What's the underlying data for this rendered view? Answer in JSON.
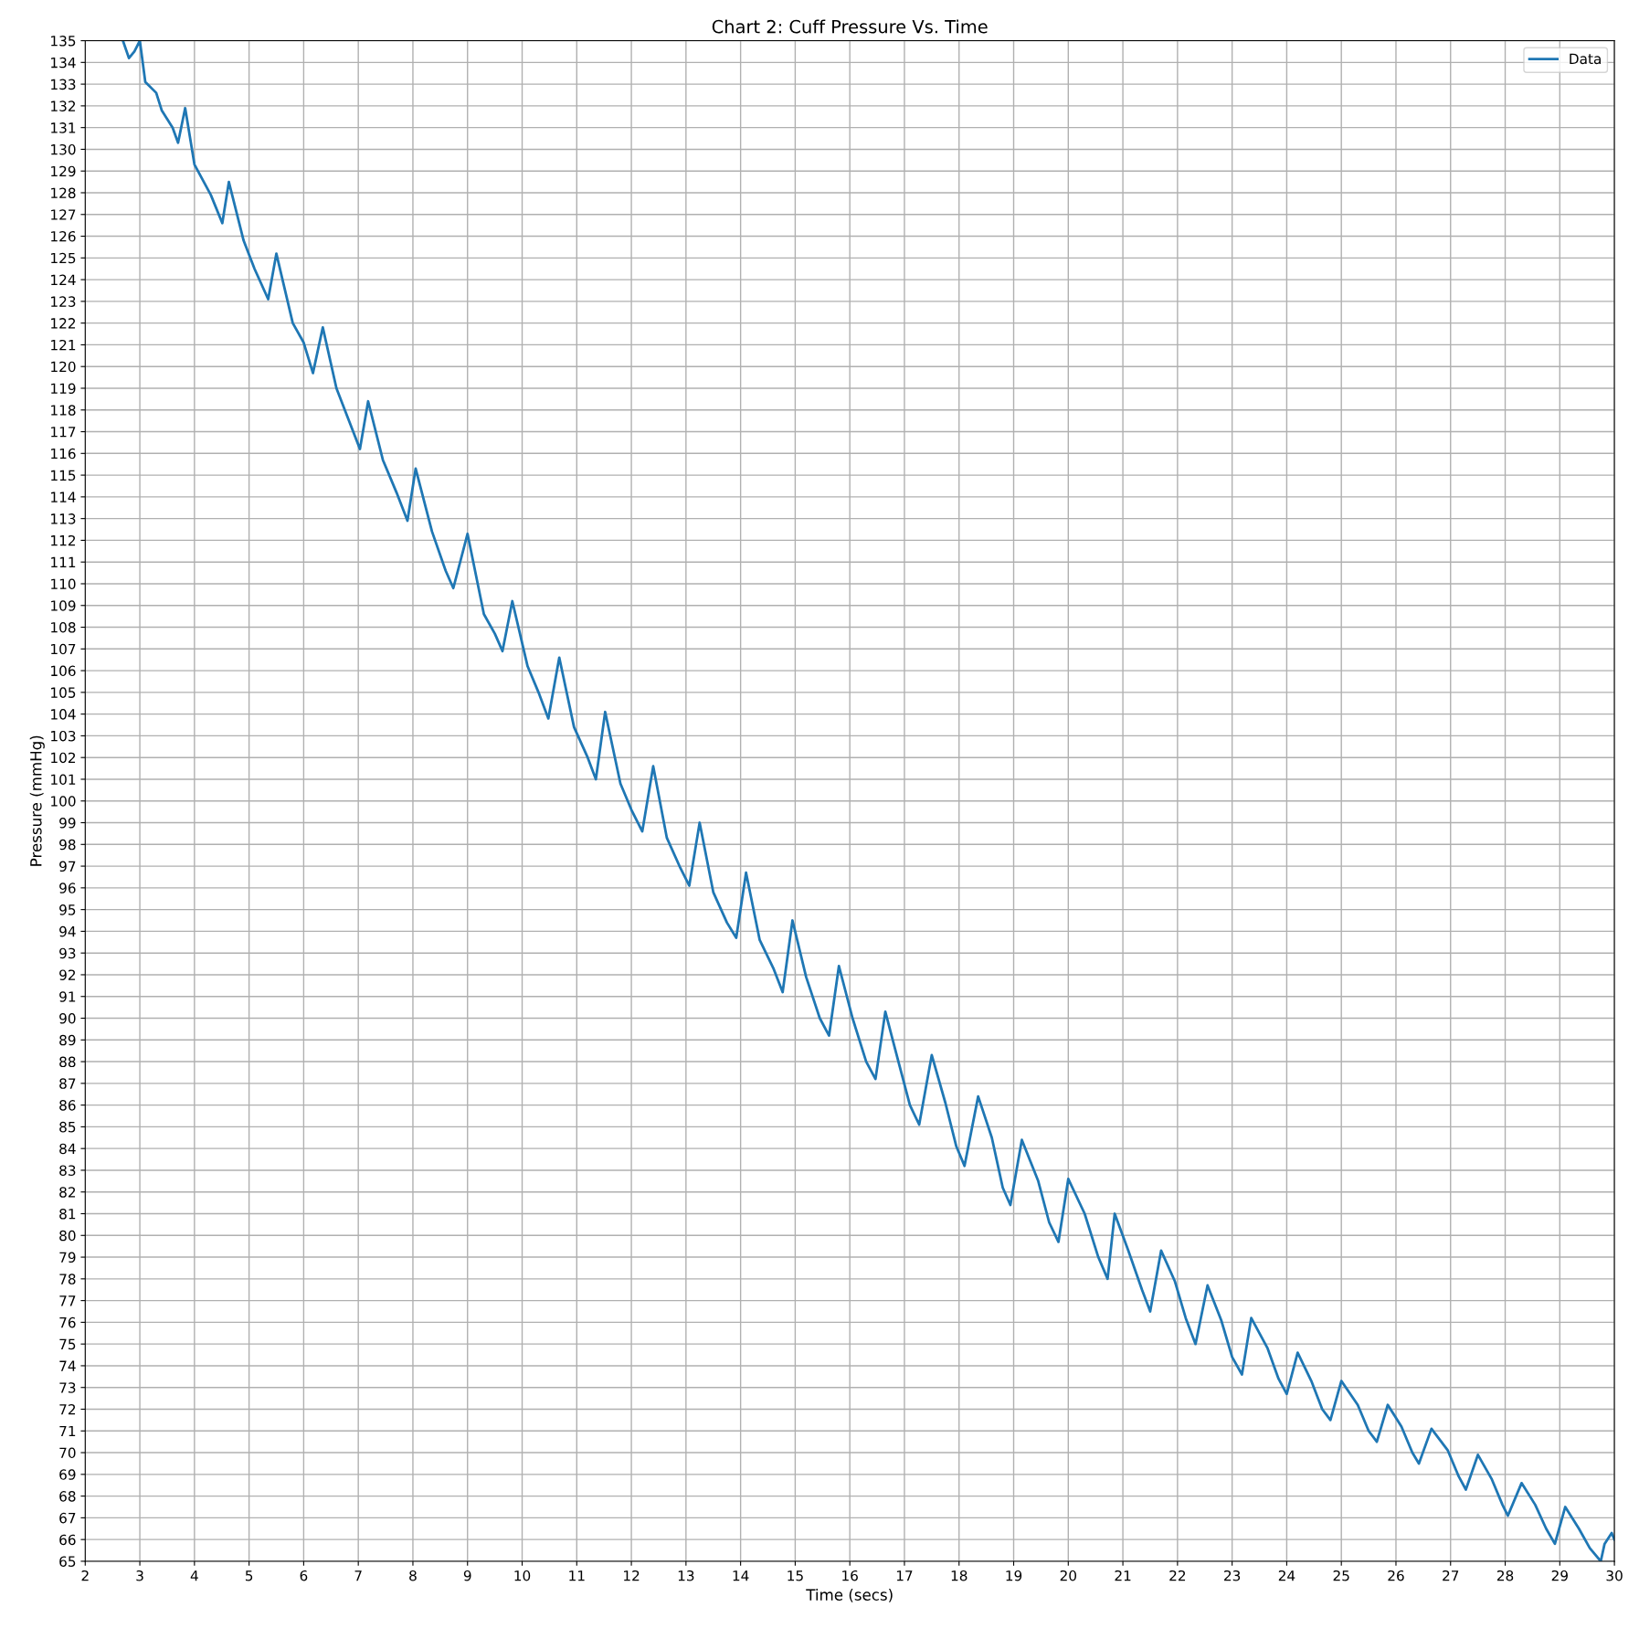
{
  "chart_data": {
    "type": "line",
    "title": "Chart 2: Cuff Pressure Vs. Time",
    "xlabel": "Time (secs)",
    "ylabel": "Pressure (mmHg)",
    "xlim": [
      2,
      30
    ],
    "xticks": [
      2,
      3,
      4,
      5,
      6,
      7,
      8,
      9,
      10,
      11,
      12,
      13,
      14,
      15,
      16,
      17,
      18,
      19,
      20,
      21,
      22,
      23,
      24,
      25,
      26,
      27,
      28,
      29,
      30
    ],
    "ylim": [
      65,
      135
    ],
    "yticks": [
      65,
      66,
      67,
      68,
      69,
      70,
      71,
      72,
      73,
      74,
      75,
      76,
      77,
      78,
      79,
      80,
      81,
      82,
      83,
      84,
      85,
      86,
      87,
      88,
      89,
      90,
      91,
      92,
      93,
      94,
      95,
      96,
      97,
      98,
      99,
      100,
      101,
      102,
      103,
      104,
      105,
      106,
      107,
      108,
      109,
      110,
      111,
      112,
      113,
      114,
      115,
      116,
      117,
      118,
      119,
      120,
      121,
      122,
      123,
      124,
      125,
      126,
      127,
      128,
      129,
      130,
      131,
      132,
      133,
      134,
      135
    ],
    "grid": true,
    "legend": "top right",
    "series": [
      {
        "name": "Data",
        "color": "#1f77b4",
        "x": [
          2.69,
          2.8,
          2.9,
          3.0,
          3.1,
          3.3,
          3.4,
          3.6,
          3.7,
          3.83,
          4.0,
          4.3,
          4.51,
          4.63,
          4.9,
          5.1,
          5.35,
          5.5,
          5.8,
          6.0,
          6.17,
          6.35,
          6.6,
          6.8,
          7.03,
          7.18,
          7.45,
          7.7,
          7.9,
          8.05,
          8.35,
          8.6,
          8.74,
          9.0,
          9.3,
          9.5,
          9.64,
          9.82,
          10.1,
          10.3,
          10.48,
          10.68,
          10.95,
          11.2,
          11.35,
          11.52,
          11.8,
          12.0,
          12.2,
          12.4,
          12.65,
          12.9,
          13.06,
          13.25,
          13.5,
          13.75,
          13.92,
          14.1,
          14.35,
          14.6,
          14.77,
          14.95,
          15.2,
          15.45,
          15.62,
          15.8,
          16.05,
          16.3,
          16.47,
          16.65,
          16.9,
          17.1,
          17.27,
          17.5,
          17.75,
          17.95,
          18.1,
          18.35,
          18.6,
          18.8,
          18.94,
          19.15,
          19.45,
          19.65,
          19.82,
          20.0,
          20.3,
          20.55,
          20.72,
          20.85,
          21.1,
          21.35,
          21.5,
          21.7,
          21.95,
          22.15,
          22.33,
          22.55,
          22.8,
          23.0,
          23.18,
          23.35,
          23.65,
          23.85,
          24.0,
          24.2,
          24.45,
          24.65,
          24.8,
          25.0,
          25.3,
          25.5,
          25.65,
          25.85,
          26.1,
          26.3,
          26.42,
          26.65,
          26.95,
          27.15,
          27.28,
          27.5,
          27.75,
          27.95,
          28.05,
          28.3,
          28.55,
          28.75,
          28.91,
          29.1,
          29.35,
          29.55,
          29.75,
          29.82,
          29.95,
          30.0
        ],
        "values": [
          135,
          134.2,
          134.5,
          135,
          133.1,
          132.6,
          131.8,
          131.0,
          130.3,
          131.9,
          129.3,
          127.9,
          126.6,
          128.5,
          125.8,
          124.5,
          123.1,
          125.2,
          122.0,
          121.1,
          119.7,
          121.8,
          119.0,
          117.7,
          116.2,
          118.4,
          115.7,
          114.2,
          112.9,
          115.3,
          112.4,
          110.6,
          109.8,
          112.3,
          108.6,
          107.7,
          106.9,
          109.2,
          106.2,
          105.0,
          103.8,
          106.6,
          103.4,
          102.0,
          101.0,
          104.1,
          100.8,
          99.6,
          98.6,
          101.6,
          98.3,
          96.9,
          96.1,
          99.0,
          95.8,
          94.4,
          93.7,
          96.7,
          93.6,
          92.3,
          91.2,
          94.5,
          91.9,
          90.0,
          89.2,
          92.4,
          90.0,
          88.0,
          87.2,
          90.3,
          87.9,
          86.0,
          85.1,
          88.3,
          86.1,
          84.1,
          83.2,
          86.4,
          84.5,
          82.2,
          81.4,
          84.4,
          82.5,
          80.6,
          79.7,
          82.6,
          81.0,
          79.0,
          78.0,
          81.0,
          79.3,
          77.5,
          76.5,
          79.3,
          77.9,
          76.2,
          75.0,
          77.7,
          76.1,
          74.4,
          73.6,
          76.2,
          74.8,
          73.4,
          72.7,
          74.6,
          73.3,
          72.0,
          71.5,
          73.3,
          72.2,
          71.0,
          70.5,
          72.2,
          71.2,
          70.0,
          69.5,
          71.1,
          70.1,
          68.9,
          68.3,
          69.9,
          68.8,
          67.6,
          67.1,
          68.6,
          67.6,
          66.5,
          65.8,
          67.5,
          66.5,
          65.6,
          65.0,
          65.8,
          66.3,
          66.0
        ]
      }
    ]
  }
}
